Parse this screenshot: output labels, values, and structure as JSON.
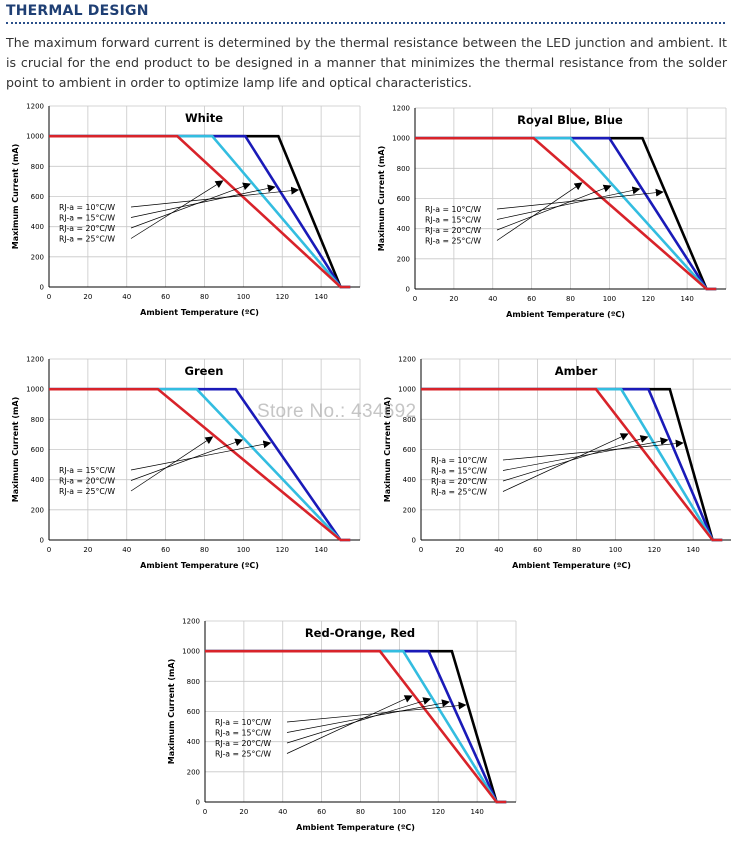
{
  "section": {
    "title": "THERMAL DESIGN",
    "body": "The maximum forward current is determined by the thermal resistance between the LED junction and ambient. It is crucial for the end product to be designed in a manner that minimizes the thermal resistance from the solder point to ambient in order to optimize lamp life and optical characteristics."
  },
  "watermark": "Store No.: 434692",
  "colors": {
    "10": "#000000",
    "15": "#1a1ab8",
    "20": "#33bde0",
    "25": "#d8232a",
    "grid": "#c8c8c8",
    "heading": "#1f3f74"
  },
  "chart_data": [
    {
      "type": "line",
      "title": "White",
      "xlabel": "Ambient Temperature (ºC)",
      "ylabel": "Maximum Current (mA)",
      "xlim": [
        0,
        160
      ],
      "ylim": [
        0,
        1200
      ],
      "xticks": [
        0,
        20,
        40,
        60,
        80,
        100,
        120,
        140
      ],
      "yticks": [
        0,
        200,
        400,
        600,
        800,
        1000,
        1200
      ],
      "grid": true,
      "series": [
        {
          "name": "RJ-a = 10°C/W",
          "key": "10",
          "x": [
            0,
            118,
            150,
            155
          ],
          "y": [
            1000,
            1000,
            0,
            0
          ]
        },
        {
          "name": "RJ-a = 15°C/W",
          "key": "15",
          "x": [
            0,
            101,
            150,
            155
          ],
          "y": [
            1000,
            1000,
            0,
            0
          ]
        },
        {
          "name": "RJ-a = 20°C/W",
          "key": "20",
          "x": [
            0,
            84,
            150,
            155
          ],
          "y": [
            1000,
            1000,
            0,
            0
          ]
        },
        {
          "name": "RJ-a = 25°C/W",
          "key": "25",
          "x": [
            0,
            66,
            150,
            155
          ],
          "y": [
            1000,
            1000,
            0,
            0
          ]
        }
      ]
    },
    {
      "type": "line",
      "title": "Royal Blue, Blue",
      "xlabel": "Ambient Temperature (ºC)",
      "ylabel": "Maximum Current (mA)",
      "xlim": [
        0,
        160
      ],
      "ylim": [
        0,
        1200
      ],
      "xticks": [
        0,
        20,
        40,
        60,
        80,
        100,
        120,
        140
      ],
      "yticks": [
        0,
        200,
        400,
        600,
        800,
        1000,
        1200
      ],
      "grid": true,
      "series": [
        {
          "name": "RJ-a = 10°C/W",
          "key": "10",
          "x": [
            0,
            117,
            150,
            155
          ],
          "y": [
            1000,
            1000,
            0,
            0
          ]
        },
        {
          "name": "RJ-a = 15°C/W",
          "key": "15",
          "x": [
            0,
            100,
            150,
            155
          ],
          "y": [
            1000,
            1000,
            0,
            0
          ]
        },
        {
          "name": "RJ-a = 20°C/W",
          "key": "20",
          "x": [
            0,
            80,
            150,
            155
          ],
          "y": [
            1000,
            1000,
            0,
            0
          ]
        },
        {
          "name": "RJ-a = 25°C/W",
          "key": "25",
          "x": [
            0,
            61,
            150,
            155
          ],
          "y": [
            1000,
            1000,
            0,
            0
          ]
        }
      ]
    },
    {
      "type": "line",
      "title": "Green",
      "xlabel": "Ambient Temperature (ºC)",
      "ylabel": "Maximum Current (mA)",
      "xlim": [
        0,
        160
      ],
      "ylim": [
        0,
        1200
      ],
      "xticks": [
        0,
        20,
        40,
        60,
        80,
        100,
        120,
        140
      ],
      "yticks": [
        0,
        200,
        400,
        600,
        800,
        1000,
        1200
      ],
      "grid": true,
      "series": [
        {
          "name": "RJ-a = 15°C/W",
          "key": "15",
          "x": [
            0,
            96,
            150,
            155
          ],
          "y": [
            1000,
            1000,
            0,
            0
          ]
        },
        {
          "name": "RJ-a = 20°C/W",
          "key": "20",
          "x": [
            0,
            76,
            150,
            155
          ],
          "y": [
            1000,
            1000,
            0,
            0
          ]
        },
        {
          "name": "RJ-a = 25°C/W",
          "key": "25",
          "x": [
            0,
            56,
            150,
            155
          ],
          "y": [
            1000,
            1000,
            0,
            0
          ]
        }
      ]
    },
    {
      "type": "line",
      "title": "Amber",
      "xlabel": "Ambient Temperature (ºC)",
      "ylabel": "Maximum Current (mA)",
      "xlim": [
        0,
        160
      ],
      "ylim": [
        0,
        1200
      ],
      "xticks": [
        0,
        20,
        40,
        60,
        80,
        100,
        120,
        140
      ],
      "yticks": [
        0,
        200,
        400,
        600,
        800,
        1000,
        1200
      ],
      "grid": true,
      "series": [
        {
          "name": "RJ-a = 10°C/W",
          "key": "10",
          "x": [
            0,
            128,
            150,
            155
          ],
          "y": [
            1000,
            1000,
            0,
            0
          ]
        },
        {
          "name": "RJ-a = 15°C/W",
          "key": "15",
          "x": [
            0,
            117,
            150,
            155
          ],
          "y": [
            1000,
            1000,
            0,
            0
          ]
        },
        {
          "name": "RJ-a = 20°C/W",
          "key": "20",
          "x": [
            0,
            103,
            150,
            155
          ],
          "y": [
            1000,
            1000,
            0,
            0
          ]
        },
        {
          "name": "RJ-a = 25°C/W",
          "key": "25",
          "x": [
            0,
            90,
            150,
            155
          ],
          "y": [
            1000,
            1000,
            0,
            0
          ]
        }
      ]
    },
    {
      "type": "line",
      "title": "Red-Orange, Red",
      "xlabel": "Ambient Temperature (ºC)",
      "ylabel": "Maximum Current (mA)",
      "xlim": [
        0,
        160
      ],
      "ylim": [
        0,
        1200
      ],
      "xticks": [
        0,
        20,
        40,
        60,
        80,
        100,
        120,
        140
      ],
      "yticks": [
        0,
        200,
        400,
        600,
        800,
        1000,
        1200
      ],
      "grid": true,
      "series": [
        {
          "name": "RJ-a = 10°C/W",
          "key": "10",
          "x": [
            0,
            127,
            150,
            155
          ],
          "y": [
            1000,
            1000,
            0,
            0
          ]
        },
        {
          "name": "RJ-a = 15°C/W",
          "key": "15",
          "x": [
            0,
            115,
            150,
            155
          ],
          "y": [
            1000,
            1000,
            0,
            0
          ]
        },
        {
          "name": "RJ-a = 20°C/W",
          "key": "20",
          "x": [
            0,
            102,
            150,
            155
          ],
          "y": [
            1000,
            1000,
            0,
            0
          ]
        },
        {
          "name": "RJ-a = 25°C/W",
          "key": "25",
          "x": [
            0,
            90,
            150,
            155
          ],
          "y": [
            1000,
            1000,
            0,
            0
          ]
        }
      ]
    }
  ]
}
